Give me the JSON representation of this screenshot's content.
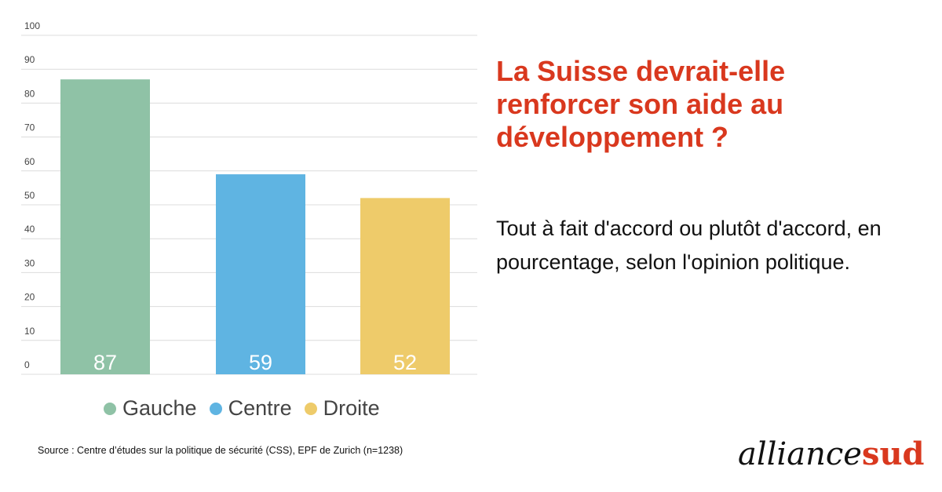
{
  "chart_data": {
    "type": "bar",
    "categories": [
      "Gauche",
      "Centre",
      "Droite"
    ],
    "values": [
      87,
      59,
      52
    ],
    "colors": [
      "#8fc2a6",
      "#5fb4e2",
      "#eecb6a"
    ],
    "ylim": [
      0,
      100
    ],
    "yticks": [
      0,
      10,
      20,
      30,
      40,
      50,
      60,
      70,
      80,
      90,
      100
    ],
    "grid": true,
    "legend_placement": "bottom",
    "xlabel": "",
    "ylabel": ""
  },
  "title": "La Suisse devrait-elle renforcer son aide au développement ?",
  "subtitle": "Tout à fait d'accord ou plutôt d'accord, en pourcentage, selon l'opinion politique.",
  "source": "Source : Centre d’études sur la politique de sécurité (CSS), EPF de Zurich (n=1238)",
  "logo": {
    "part1": "alliance",
    "part2": "sud"
  },
  "legend": [
    "Gauche",
    "Centre",
    "Droite"
  ]
}
